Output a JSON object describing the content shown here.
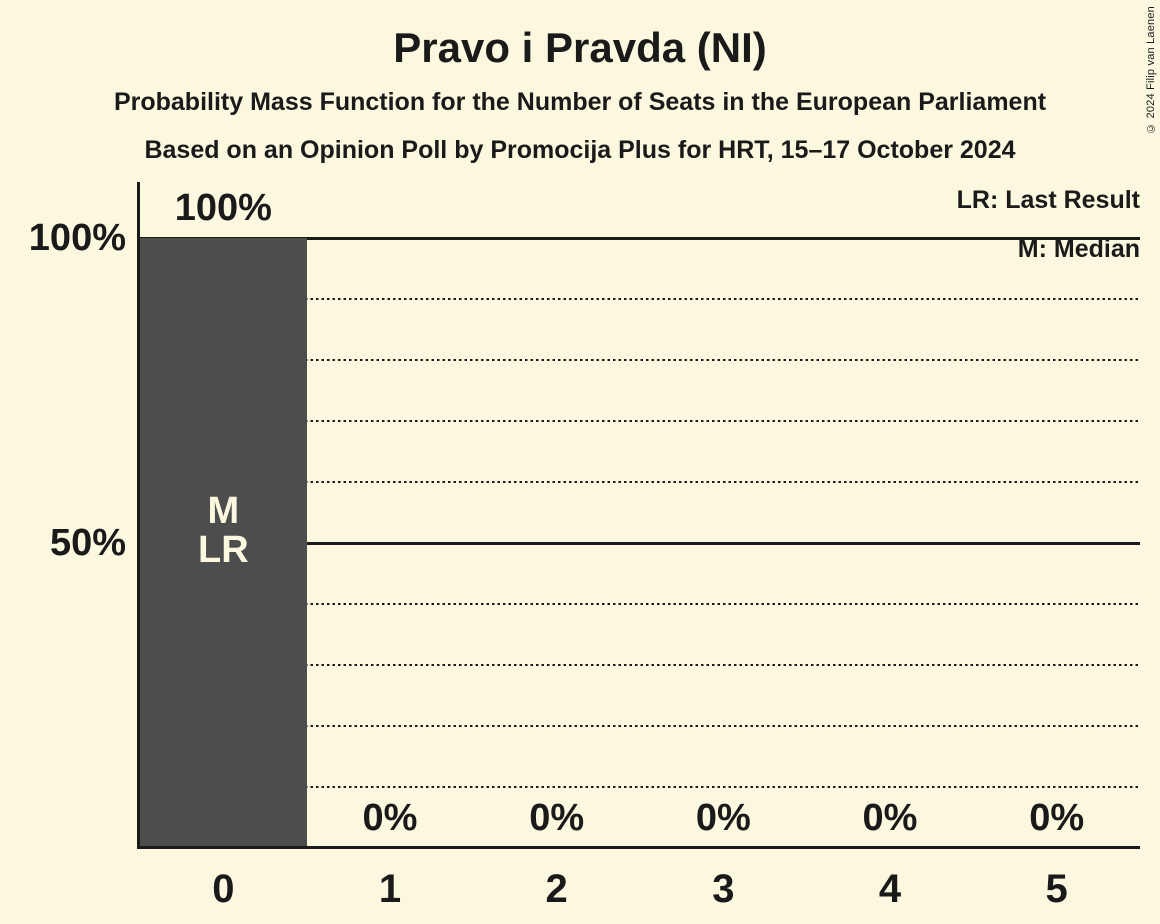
{
  "title": "Pravo i Pravda (NI)",
  "subtitle_line1": "Probability Mass Function for the Number of Seats in the European Parliament",
  "subtitle_line2": "Based on an Opinion Poll by Promocija Plus for HRT, 15–17 October 2024",
  "copyright": "© 2024 Filip van Laenen",
  "legend": {
    "last_result": "LR: Last Result",
    "median": "M: Median"
  },
  "colors": {
    "background": "#FCF8DF",
    "bar": "#4D4D4D",
    "text": "#1A1A1A",
    "bar_inner_label": "#FCF8DF"
  },
  "chart_data": {
    "type": "bar",
    "title": "Pravo i Pravda (NI)",
    "categories": [
      "0",
      "1",
      "2",
      "3",
      "4",
      "5"
    ],
    "values": [
      100,
      0,
      0,
      0,
      0,
      0
    ],
    "value_labels": [
      "100%",
      "0%",
      "0%",
      "0%",
      "0%",
      "0%"
    ],
    "bar_annotations": [
      [
        "M",
        "LR"
      ],
      [],
      [],
      [],
      [],
      []
    ],
    "xlabel": "",
    "ylabel": "",
    "ylim": [
      0,
      100
    ],
    "yticks": [
      {
        "pct": 50,
        "label": "50%"
      },
      {
        "pct": 100,
        "label": "100%"
      }
    ],
    "solid_gridlines_pct": [
      50,
      100
    ],
    "dotted_gridlines_pct": [
      10,
      20,
      30,
      40,
      60,
      70,
      80,
      90
    ],
    "grid": "horizontal",
    "legend_position": "top-right",
    "annotation_legend": [
      "LR: Last Result",
      "M: Median"
    ]
  }
}
